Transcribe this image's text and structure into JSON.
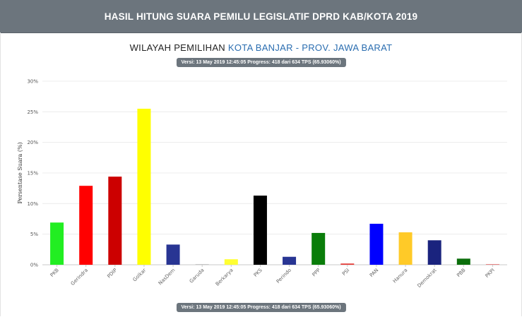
{
  "header": {
    "title": "HASIL HITUNG SUARA PEMILU LEGISLATIF DPRD KAB/KOTA 2019"
  },
  "subtitle": {
    "prefix": "WILAYAH PEMILIHAN",
    "region": "KOTA BANJAR - PROV. JAWA BARAT"
  },
  "version_badge": {
    "text": "Versi: 13 May 2019 12:45:05 Progress: 418 dari 634 TPS (65.93060%)"
  },
  "chart_data": {
    "type": "bar",
    "title": "",
    "xlabel": "",
    "ylabel": "Persentase Suara (%)",
    "ylim": [
      0,
      30
    ],
    "yticks": [
      {
        "value": 0,
        "label": "0%"
      },
      {
        "value": 5,
        "label": "5%"
      },
      {
        "value": 10,
        "label": "10%"
      },
      {
        "value": 15,
        "label": "15%"
      },
      {
        "value": 20,
        "label": "20%"
      },
      {
        "value": 25,
        "label": "25%"
      },
      {
        "value": 30,
        "label": "30%"
      }
    ],
    "grid": true,
    "categories": [
      "PKB",
      "Gerindra",
      "PDIP",
      "Golkar",
      "NasDem",
      "Garuda",
      "Berkarya",
      "PKS",
      "Perindo",
      "PPP",
      "PSI",
      "PAN",
      "Hanura",
      "Demokrat",
      "PBB",
      "PKPI"
    ],
    "values": [
      6.9,
      12.9,
      14.4,
      25.5,
      3.3,
      0.1,
      0.9,
      11.3,
      1.3,
      5.2,
      0.2,
      6.7,
      5.3,
      4.0,
      1.0,
      0.1
    ],
    "colors": [
      "#22ee22",
      "#ff0000",
      "#cc0000",
      "#ffff00",
      "#283593",
      "#bdbdbd",
      "#ffff33",
      "#000000",
      "#283593",
      "#0a7d0a",
      "#e53935",
      "#0000ff",
      "#ffca28",
      "#1a237e",
      "#0b6e0b",
      "#e57373"
    ]
  }
}
